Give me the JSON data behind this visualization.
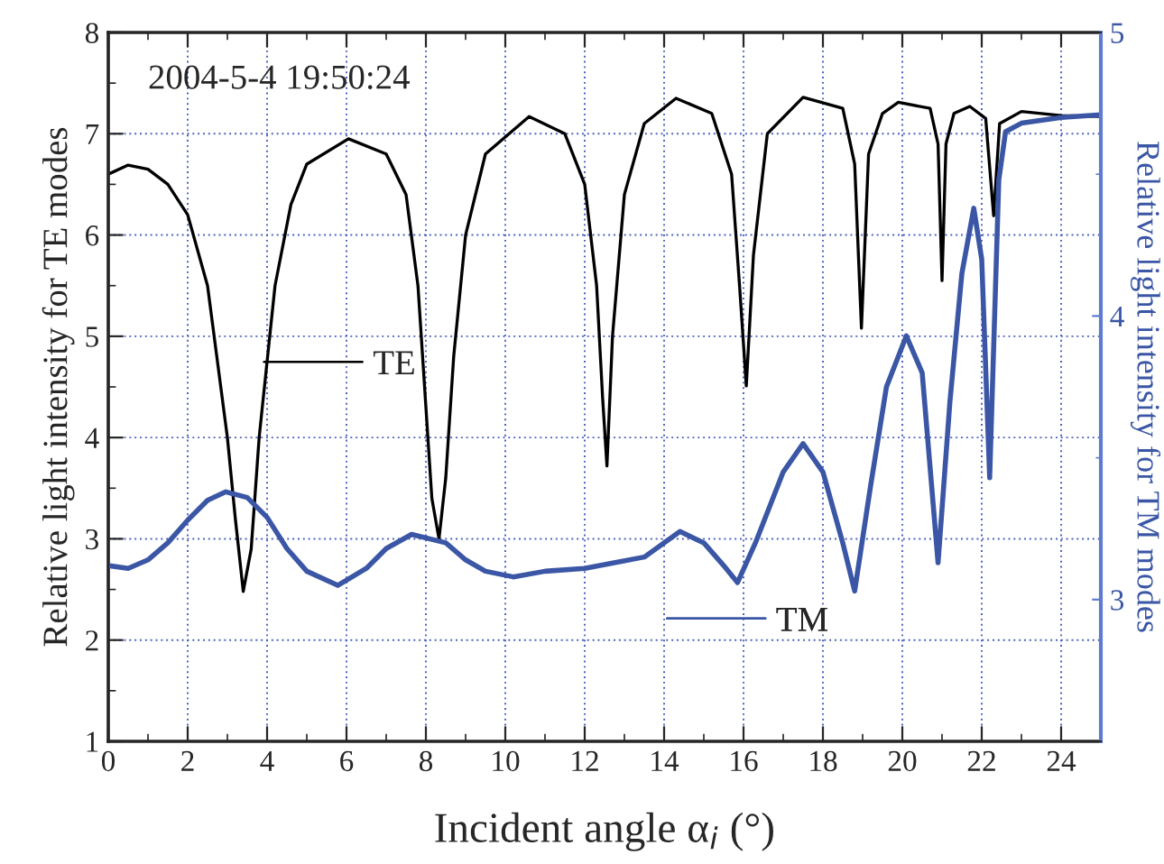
{
  "chart_data": {
    "type": "line",
    "xlabel": "Incident angle α$_{i}$ (°)",
    "ylabel": "Relative light intensity for TE modes",
    "y2label": "Relative light intensity for TM modes",
    "annotations": [
      "2004-5-4 19:50:24"
    ],
    "xlim": [
      0,
      25
    ],
    "xticks": [
      0,
      {
        "value": 1,
        "label": null
      },
      2,
      {
        "value": 3,
        "label": null
      },
      4,
      {
        "value": 5,
        "label": null
      },
      6,
      {
        "value": 7,
        "label": null
      },
      8,
      {
        "value": 9,
        "label": null
      },
      10,
      {
        "value": 11,
        "label": null
      },
      12,
      {
        "value": 13,
        "label": null
      },
      14,
      {
        "value": 15,
        "label": null
      },
      16,
      {
        "value": 17,
        "label": null
      },
      18,
      {
        "value": 19,
        "label": null
      },
      20,
      {
        "value": 21,
        "label": null
      },
      22,
      {
        "value": 23,
        "label": null
      },
      24
    ],
    "ylim": [
      1,
      8
    ],
    "yticks": [
      1,
      {
        "value": 1.5,
        "label": null
      },
      2,
      {
        "value": 2.5,
        "label": null
      },
      3,
      {
        "value": 3.5,
        "label": null
      },
      4,
      {
        "value": 4.5,
        "label": null
      },
      5,
      {
        "value": 5.5,
        "label": null
      },
      6,
      {
        "value": 6.5,
        "label": null
      },
      7,
      {
        "value": 7.5,
        "label": null
      },
      8
    ],
    "y2lim": [
      2.5,
      5
    ],
    "y2ticks": [
      3,
      {
        "value": 3.5,
        "label": null
      },
      4,
      {
        "value": 4.5,
        "label": null
      },
      5
    ],
    "grid": true,
    "legend": "center",
    "marker": "none",
    "line_style": "solid",
    "series": [
      {
        "name": "TE",
        "color": "#000000",
        "x": [
          0,
          0.5,
          1,
          1.5,
          2,
          2.5,
          3,
          3.2,
          3.4,
          3.6,
          3.8,
          4.2,
          4.6,
          5,
          6.05,
          7,
          7.5,
          7.8,
          8.0,
          8.15,
          8.33,
          8.5,
          8.7,
          9,
          9.5,
          10.6,
          11.5,
          12,
          12.3,
          12.45,
          12.56,
          12.7,
          13,
          13.5,
          14.3,
          15.2,
          15.7,
          15.9,
          16.07,
          16.25,
          16.6,
          17.5,
          18.5,
          18.8,
          18.97,
          19.15,
          19.5,
          19.9,
          20.7,
          20.9,
          21.0,
          21.1,
          21.3,
          21.7,
          22.1,
          22.3,
          22.45,
          23,
          24,
          25
        ],
        "values": [
          6.6,
          6.69,
          6.65,
          6.5,
          6.2,
          5.5,
          4.0,
          3.2,
          2.48,
          2.9,
          4.0,
          5.5,
          6.3,
          6.7,
          6.95,
          6.8,
          6.4,
          5.5,
          4.3,
          3.4,
          3.0,
          3.6,
          4.8,
          6.0,
          6.8,
          7.17,
          7.0,
          6.5,
          5.5,
          4.4,
          3.72,
          5.0,
          6.4,
          7.1,
          7.35,
          7.2,
          6.6,
          5.5,
          4.51,
          5.8,
          7.0,
          7.36,
          7.25,
          6.7,
          5.08,
          6.8,
          7.2,
          7.31,
          7.25,
          6.9,
          5.55,
          6.9,
          7.2,
          7.27,
          7.15,
          6.19,
          7.1,
          7.22,
          7.18,
          7.17
        ]
      },
      {
        "name": "TM",
        "color": "#3a56a5",
        "axis": "y2",
        "x": [
          0,
          0.5,
          1,
          1.5,
          2,
          2.5,
          2.96,
          3.5,
          4,
          4.5,
          5,
          5.78,
          6.5,
          7,
          7.64,
          8.5,
          9,
          9.5,
          10.2,
          11,
          12,
          12.74,
          13.5,
          14.4,
          15,
          15.5,
          15.85,
          16.3,
          17,
          17.5,
          18,
          18.5,
          18.8,
          19.2,
          19.6,
          20.1,
          20.5,
          20.9,
          21.2,
          21.5,
          21.8,
          22.0,
          22.2,
          22.43,
          22.6,
          23,
          24,
          25
        ],
        "values": [
          3.12,
          3.11,
          3.14,
          3.2,
          3.28,
          3.35,
          3.38,
          3.36,
          3.29,
          3.18,
          3.1,
          3.05,
          3.11,
          3.18,
          3.23,
          3.2,
          3.14,
          3.1,
          3.08,
          3.1,
          3.11,
          3.13,
          3.15,
          3.24,
          3.2,
          3.12,
          3.06,
          3.2,
          3.45,
          3.55,
          3.45,
          3.2,
          3.03,
          3.4,
          3.75,
          3.93,
          3.8,
          3.13,
          3.7,
          4.15,
          4.38,
          4.2,
          3.43,
          4.48,
          4.65,
          4.68,
          4.7,
          4.71
        ]
      }
    ]
  }
}
